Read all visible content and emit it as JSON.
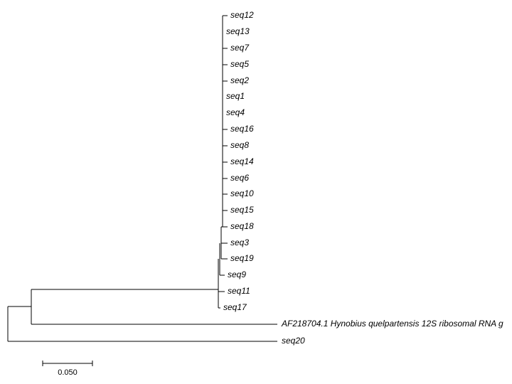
{
  "tree": {
    "leaves": [
      "seq12",
      "seq13",
      "seq7",
      "seq5",
      "seq2",
      "seq1",
      "seq4",
      "seq16",
      "seq8",
      "seq14",
      "seq6",
      "seq10",
      "seq15",
      "seq18",
      "seq3",
      "seq19",
      "seq9",
      "seq11",
      "seq17",
      "AF218704.1 Hynobius quelpartensis 12S ribosomal RNA g",
      "seq20"
    ],
    "scale_bar": "0.050"
  }
}
